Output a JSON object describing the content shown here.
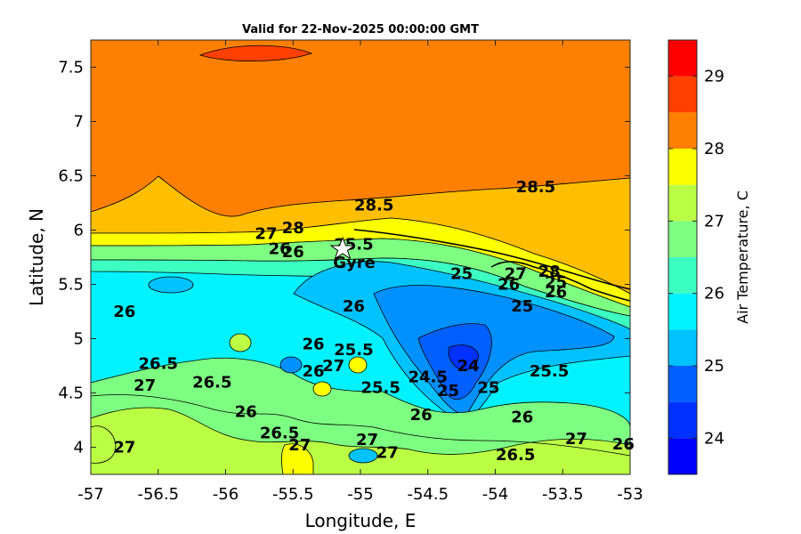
{
  "title": "Valid for 22-Nov-2025 00:00:00 GMT",
  "xlabel": "Longitude, E",
  "ylabel": "Latitude, N",
  "colorbar_label": "Air Temperature, C",
  "marker": {
    "label": "Gyre",
    "lon": -55.15,
    "lat": 5.83,
    "icon": "star-icon"
  },
  "x_ticks": [
    "-57",
    "-56.5",
    "-56",
    "-55.5",
    "-55",
    "-54.5",
    "-54",
    "-53.5",
    "-53"
  ],
  "y_ticks": [
    "7.5",
    "7",
    "6.5",
    "6",
    "5.5",
    "5",
    "4.5",
    "4"
  ],
  "colorbar_ticks": [
    "29",
    "28",
    "27",
    "26",
    "25",
    "24"
  ],
  "chart_data": {
    "type": "heatmap",
    "title": "Valid for 22-Nov-2025 00:00:00 GMT",
    "xlabel": "Longitude, E",
    "ylabel": "Latitude, N",
    "xlim": [
      -57,
      -53
    ],
    "ylim": [
      3.75,
      7.75
    ],
    "variable": "Air Temperature, C",
    "color_scale": {
      "min": 23.5,
      "max": 29.5,
      "step": 0.5,
      "colors": [
        "#0000ff",
        "#0031ff",
        "#0060ff",
        "#0091ff",
        "#00c2ff",
        "#00f2ff",
        "#3cffc2",
        "#7dff82",
        "#bbff44",
        "#fbff00",
        "#ffbf00",
        "#ff8000",
        "#ff4000",
        "#ff0000"
      ]
    },
    "contour_labels": [
      {
        "text": "28.5",
        "lon": -54.9,
        "lat": 6.18
      },
      {
        "text": "28.5",
        "lon": -53.7,
        "lat": 6.35
      },
      {
        "text": "27",
        "lon": -55.7,
        "lat": 5.92
      },
      {
        "text": "28",
        "lon": -55.5,
        "lat": 5.97
      },
      {
        "text": "26",
        "lon": -55.6,
        "lat": 5.78
      },
      {
        "text": "26",
        "lon": -55.5,
        "lat": 5.75
      },
      {
        "text": "25.5",
        "lon": -55.05,
        "lat": 5.82
      },
      {
        "text": "25",
        "lon": -54.25,
        "lat": 5.55
      },
      {
        "text": "27",
        "lon": -53.85,
        "lat": 5.55
      },
      {
        "text": "28",
        "lon": -53.6,
        "lat": 5.57
      },
      {
        "text": "26",
        "lon": -53.9,
        "lat": 5.45
      },
      {
        "text": "25",
        "lon": -53.55,
        "lat": 5.47
      },
      {
        "text": "26",
        "lon": -53.55,
        "lat": 5.38
      },
      {
        "text": "25",
        "lon": -53.8,
        "lat": 5.25
      },
      {
        "text": "26",
        "lon": -56.75,
        "lat": 5.2
      },
      {
        "text": "26",
        "lon": -55.05,
        "lat": 5.25
      },
      {
        "text": "26.5",
        "lon": -56.5,
        "lat": 4.72
      },
      {
        "text": "27",
        "lon": -56.6,
        "lat": 4.52
      },
      {
        "text": "26.5",
        "lon": -56.1,
        "lat": 4.55
      },
      {
        "text": "26",
        "lon": -55.35,
        "lat": 4.9
      },
      {
        "text": "26",
        "lon": -55.35,
        "lat": 4.65
      },
      {
        "text": "27",
        "lon": -55.2,
        "lat": 4.7
      },
      {
        "text": "25.5",
        "lon": -55.05,
        "lat": 4.85
      },
      {
        "text": "25.5",
        "lon": -54.85,
        "lat": 4.5
      },
      {
        "text": "24.5",
        "lon": -54.5,
        "lat": 4.6
      },
      {
        "text": "25",
        "lon": -54.35,
        "lat": 4.47
      },
      {
        "text": "24",
        "lon": -54.2,
        "lat": 4.7
      },
      {
        "text": "25",
        "lon": -54.05,
        "lat": 4.5
      },
      {
        "text": "25.5",
        "lon": -53.6,
        "lat": 4.65
      },
      {
        "text": "26",
        "lon": -55.85,
        "lat": 4.28
      },
      {
        "text": "26.5",
        "lon": -55.6,
        "lat": 4.08
      },
      {
        "text": "27",
        "lon": -55.45,
        "lat": 3.97
      },
      {
        "text": "26",
        "lon": -54.55,
        "lat": 4.25
      },
      {
        "text": "27",
        "lon": -54.95,
        "lat": 4.02
      },
      {
        "text": "27",
        "lon": -54.8,
        "lat": 3.9
      },
      {
        "text": "26",
        "lon": -53.8,
        "lat": 4.23
      },
      {
        "text": "26.5",
        "lon": -53.85,
        "lat": 3.88
      },
      {
        "text": "27",
        "lon": -53.4,
        "lat": 4.03
      },
      {
        "text": "26",
        "lon": -53.05,
        "lat": 3.98
      },
      {
        "text": "27",
        "lon": -56.75,
        "lat": 3.95
      }
    ]
  }
}
